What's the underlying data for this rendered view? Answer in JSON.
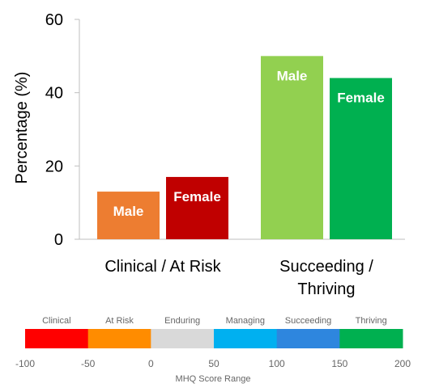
{
  "chart_data": {
    "type": "bar",
    "ylabel": "Percentage (%)",
    "ylim": [
      0,
      60
    ],
    "yticks": [
      0,
      20,
      40,
      60
    ],
    "categories": [
      {
        "lines": [
          "Clinical / At Risk"
        ]
      },
      {
        "lines": [
          "Succeeding /",
          "Thriving"
        ]
      }
    ],
    "bars": [
      {
        "category": 0,
        "label": "Male",
        "value": 13,
        "color": "#ED7D31"
      },
      {
        "category": 0,
        "label": "Female",
        "value": 17,
        "color": "#C00000"
      },
      {
        "category": 1,
        "label": "Male",
        "value": 50,
        "color": "#92D050"
      },
      {
        "category": 1,
        "label": "Female",
        "value": 44,
        "color": "#00B050"
      }
    ],
    "grid": false
  },
  "scale_legend": {
    "title": "MHQ Score Range",
    "segments": [
      {
        "label": "Clinical",
        "color": "#FF0000"
      },
      {
        "label": "At Risk",
        "color": "#FF8C00"
      },
      {
        "label": "Enduring",
        "color": "#D9D9D9"
      },
      {
        "label": "Managing",
        "color": "#00B0F0"
      },
      {
        "label": "Succeeding",
        "color": "#2E86DE"
      },
      {
        "label": "Thriving",
        "color": "#00B050"
      }
    ],
    "ticks": [
      "-100",
      "-50",
      "0",
      "50",
      "100",
      "150",
      "200"
    ]
  }
}
